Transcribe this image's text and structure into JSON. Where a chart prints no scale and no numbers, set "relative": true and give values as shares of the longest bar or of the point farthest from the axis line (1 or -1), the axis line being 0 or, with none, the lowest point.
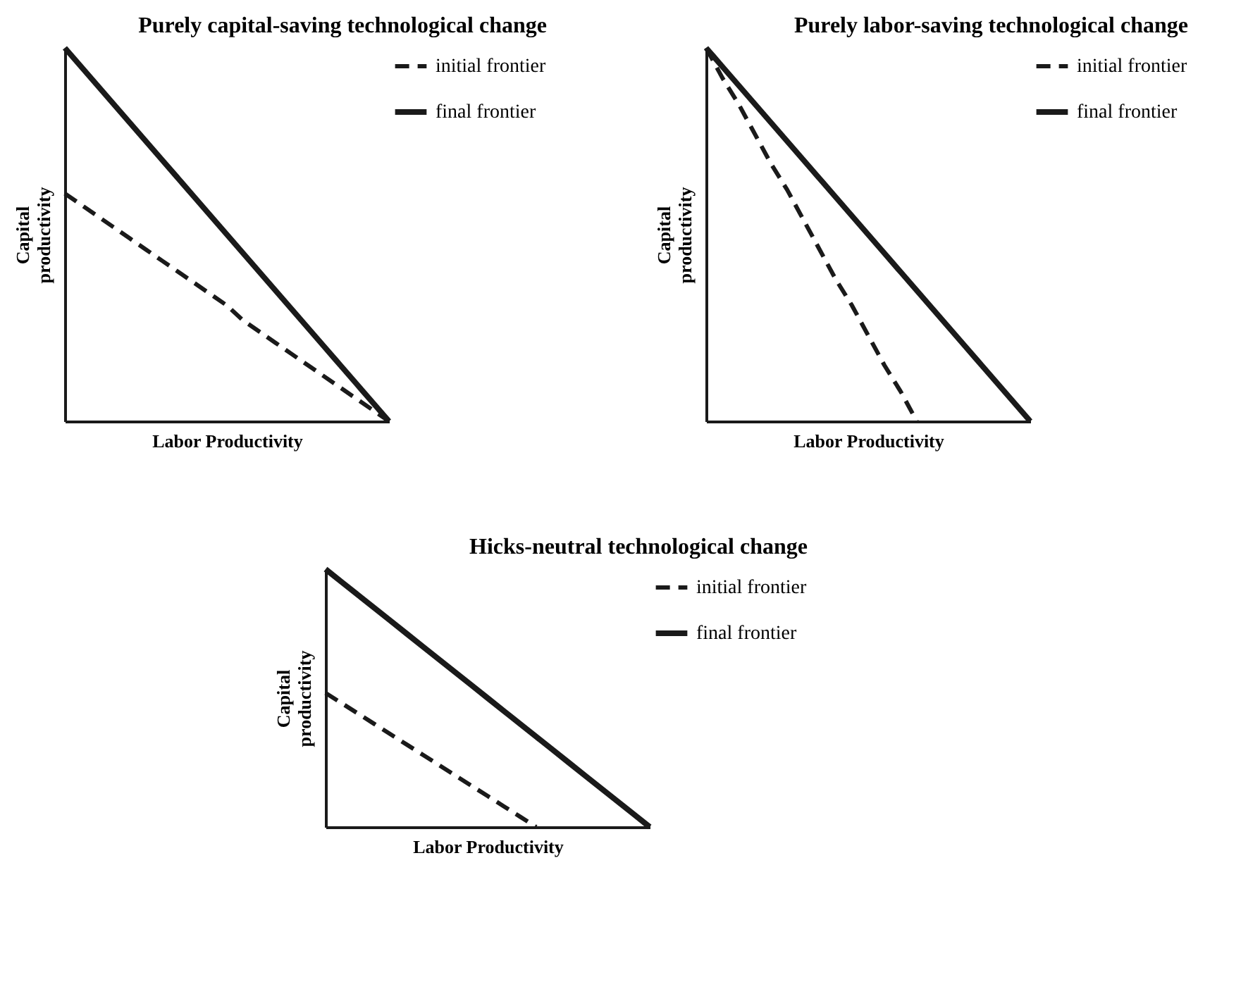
{
  "chart_data": [
    {
      "type": "line",
      "title": "Purely capital-saving technological change",
      "xlabel": "Labor Productivity",
      "ylabel": "Capital productivity",
      "relative": true,
      "legend": "right",
      "categories": [
        null,
        null,
        null,
        null,
        null,
        null,
        null,
        null,
        null,
        null,
        null,
        null,
        null,
        null,
        null,
        null,
        null,
        null,
        null,
        null,
        null
      ],
      "series": [
        {
          "name": "initial frontier",
          "color": "#1a1a1a",
          "line_style": "dashed",
          "values": [
            0.61,
            0.58,
            0.55,
            0.52,
            0.49,
            0.46,
            0.43,
            0.4,
            0.37,
            0.34,
            0.31,
            0.27,
            0.24,
            0.21,
            0.18,
            0.15,
            0.12,
            0.09,
            0.06,
            0.03,
            0
          ]
        },
        {
          "name": "final frontier",
          "color": "#1a1a1a",
          "line_style": "solid",
          "values": [
            1,
            0.95,
            0.9,
            0.85,
            0.8,
            0.75,
            0.7,
            0.65,
            0.6,
            0.55,
            0.5,
            0.45,
            0.4,
            0.35,
            0.3,
            0.25,
            0.2,
            0.15,
            0.1,
            0.05,
            0
          ]
        }
      ]
    },
    {
      "type": "line",
      "title": "Purely labor-saving technological change",
      "xlabel": "Labor Productivity",
      "ylabel": "Capital productivity",
      "relative": true,
      "legend": "right",
      "categories": [
        null,
        null,
        null,
        null,
        null,
        null,
        null,
        null,
        null,
        null,
        null,
        null,
        null,
        null,
        null,
        null,
        null,
        null,
        null,
        null,
        null
      ],
      "series": [
        {
          "name": "initial frontier",
          "color": "#1a1a1a",
          "line_style": "dashed",
          "values": [
            1,
            0.92,
            0.85,
            0.77,
            0.69,
            0.62,
            0.54,
            0.46,
            0.38,
            0.31,
            0.23,
            0.15,
            0.08,
            0,
            null,
            null,
            null,
            null,
            null,
            null,
            null
          ]
        },
        {
          "name": "final frontier",
          "color": "#1a1a1a",
          "line_style": "solid",
          "values": [
            1,
            0.95,
            0.9,
            0.85,
            0.8,
            0.75,
            0.7,
            0.65,
            0.6,
            0.55,
            0.5,
            0.45,
            0.4,
            0.35,
            0.3,
            0.25,
            0.2,
            0.15,
            0.1,
            0.05,
            0
          ]
        }
      ]
    },
    {
      "type": "line",
      "title": "Hicks-neutral technological change",
      "xlabel": "Labor Productivity",
      "ylabel": "Capital productivity",
      "relative": true,
      "legend": "right",
      "categories": [
        null,
        null,
        null,
        null,
        null,
        null,
        null,
        null,
        null,
        null,
        null,
        null,
        null,
        null,
        null,
        null,
        null,
        null,
        null,
        null,
        null
      ],
      "series": [
        {
          "name": "initial frontier",
          "color": "#1a1a1a",
          "line_style": "dashed",
          "values": [
            0.52,
            0.48,
            0.44,
            0.4,
            0.36,
            0.32,
            0.28,
            0.24,
            0.2,
            0.16,
            0.12,
            0.08,
            0.04,
            0,
            null,
            null,
            null,
            null,
            null,
            null,
            null
          ]
        },
        {
          "name": "final frontier",
          "color": "#1a1a1a",
          "line_style": "solid",
          "values": [
            1,
            0.95,
            0.9,
            0.85,
            0.8,
            0.75,
            0.7,
            0.65,
            0.6,
            0.55,
            0.5,
            0.45,
            0.4,
            0.35,
            0.3,
            0.25,
            0.2,
            0.15,
            0.1,
            0.05,
            0
          ]
        }
      ]
    }
  ]
}
